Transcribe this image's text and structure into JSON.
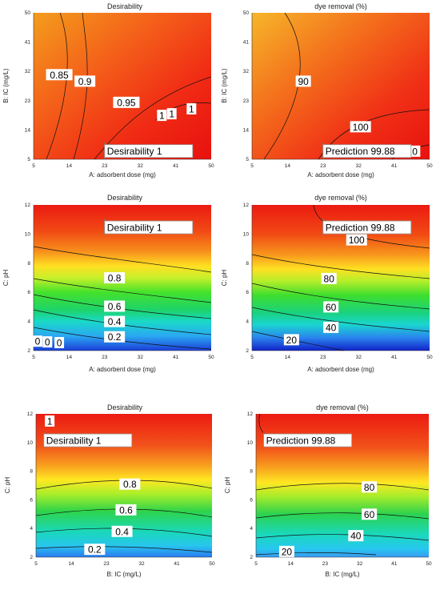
{
  "chart_data": [
    {
      "type": "heatmap",
      "title": "Desirability",
      "xlabel": "A: adsorbent dose (mg)",
      "ylabel": "B: IC (mg/L)",
      "xlim": [
        5,
        50
      ],
      "ylim": [
        5,
        50
      ],
      "xticks": [
        "5",
        "14",
        "23",
        "32",
        "41",
        "50"
      ],
      "yticks": [
        "5",
        "14",
        "23",
        "32",
        "41",
        "50"
      ],
      "contour_labels": [
        {
          "text": "0.85",
          "x": 11.5,
          "y": 31
        },
        {
          "text": "0.9",
          "x": 18,
          "y": 29
        },
        {
          "text": "0.95",
          "x": 28.5,
          "y": 22.5
        },
        {
          "text": "1",
          "x": 37.5,
          "y": 18.5
        },
        {
          "text": "1",
          "x": 40,
          "y": 19
        },
        {
          "text": "1",
          "x": 45,
          "y": 20.5
        }
      ],
      "prediction": {
        "label": "Desirability",
        "value": "1",
        "x": 23,
        "y": 9.5
      }
    },
    {
      "type": "heatmap",
      "title": "dye removal (%)",
      "xlabel": "A: adsorbent dose (mg)",
      "ylabel": "B: IC (mg/L)",
      "xlim": [
        5,
        50
      ],
      "ylim": [
        5,
        50
      ],
      "xticks": [
        "5",
        "14",
        "23",
        "32",
        "41",
        "50"
      ],
      "yticks": [
        "5",
        "14",
        "23",
        "32",
        "41",
        "50"
      ],
      "contour_labels": [
        {
          "text": "90",
          "x": 18,
          "y": 29
        },
        {
          "text": "100",
          "x": 32.5,
          "y": 15
        },
        {
          "text": "110",
          "x": 45,
          "y": 7.5
        }
      ],
      "prediction": {
        "label": "Prediction",
        "value": "99.88",
        "x": 23,
        "y": 9.5
      }
    },
    {
      "type": "heatmap",
      "title": "Desirability",
      "xlabel": "A: adsorbent dose (mg)",
      "ylabel": "C: pH",
      "xlim": [
        5,
        50
      ],
      "ylim": [
        2,
        12
      ],
      "xticks": [
        "5",
        "14",
        "23",
        "32",
        "41",
        "50"
      ],
      "yticks": [
        "2",
        "4",
        "6",
        "8",
        "10",
        "12"
      ],
      "contour_labels": [
        {
          "text": "0.8",
          "x": 25.5,
          "y": 7.0
        },
        {
          "text": "0.6",
          "x": 25.5,
          "y": 5.05
        },
        {
          "text": "0.4",
          "x": 25.5,
          "y": 4.0
        },
        {
          "text": "0.2",
          "x": 25.5,
          "y": 2.95
        },
        {
          "text": "0",
          "x": 6.0,
          "y": 2.65
        },
        {
          "text": "0",
          "x": 8.5,
          "y": 2.6
        },
        {
          "text": "0",
          "x": 11.5,
          "y": 2.55
        }
      ],
      "prediction": {
        "label": "Desirability",
        "value": "1",
        "x": 23,
        "y": 10.9
      }
    },
    {
      "type": "heatmap",
      "title": "dye removal (%)",
      "xlabel": "A: adsorbent dose (mg)",
      "ylabel": "C: pH",
      "xlim": [
        5,
        50
      ],
      "ylim": [
        2,
        12
      ],
      "xticks": [
        "5",
        "14",
        "23",
        "32",
        "41",
        "50"
      ],
      "yticks": [
        "2",
        "4",
        "6",
        "8",
        "10",
        "12"
      ],
      "contour_labels": [
        {
          "text": "100",
          "x": 31.5,
          "y": 9.6
        },
        {
          "text": "80",
          "x": 24.5,
          "y": 6.95
        },
        {
          "text": "60",
          "x": 25,
          "y": 5.0
        },
        {
          "text": "40",
          "x": 25,
          "y": 3.6
        },
        {
          "text": "20",
          "x": 15,
          "y": 2.75
        }
      ],
      "prediction": {
        "label": "Prediction",
        "value": "99.88",
        "x": 23,
        "y": 10.9
      }
    },
    {
      "type": "heatmap",
      "title": "Desirability",
      "xlabel": "B: IC (mg/L)",
      "ylabel": "C: pH",
      "xlim": [
        5,
        50
      ],
      "ylim": [
        2,
        12
      ],
      "xticks": [
        "5",
        "14",
        "23",
        "32",
        "41",
        "50"
      ],
      "yticks": [
        "2",
        "4",
        "6",
        "8",
        "10",
        "12"
      ],
      "contour_labels": [
        {
          "text": "1",
          "x": 8.5,
          "y": 11.5
        },
        {
          "text": "0.8",
          "x": 29,
          "y": 7.1
        },
        {
          "text": "0.6",
          "x": 28,
          "y": 5.3
        },
        {
          "text": "0.4",
          "x": 27,
          "y": 3.8
        },
        {
          "text": "0.2",
          "x": 20,
          "y": 2.55
        }
      ],
      "prediction": {
        "label": "Desirability",
        "value": "1",
        "x": 7,
        "y": 10.6
      }
    },
    {
      "type": "heatmap",
      "title": "dye removal (%)",
      "xlabel": "B: IC (mg/L)",
      "ylabel": "C: pH",
      "xlim": [
        5,
        50
      ],
      "ylim": [
        2,
        12
      ],
      "xticks": [
        "5",
        "14",
        "23",
        "32",
        "41",
        "50"
      ],
      "yticks": [
        "2",
        "4",
        "6",
        "8",
        "10",
        "12"
      ],
      "contour_labels": [
        {
          "text": "80",
          "x": 34.5,
          "y": 6.9
        },
        {
          "text": "60",
          "x": 34.5,
          "y": 5.0
        },
        {
          "text": "40",
          "x": 31,
          "y": 3.5
        },
        {
          "text": "20",
          "x": 13,
          "y": 2.4
        }
      ],
      "prediction": {
        "label": "Prediction",
        "value": "99.88",
        "x": 7,
        "y": 10.6
      }
    }
  ]
}
